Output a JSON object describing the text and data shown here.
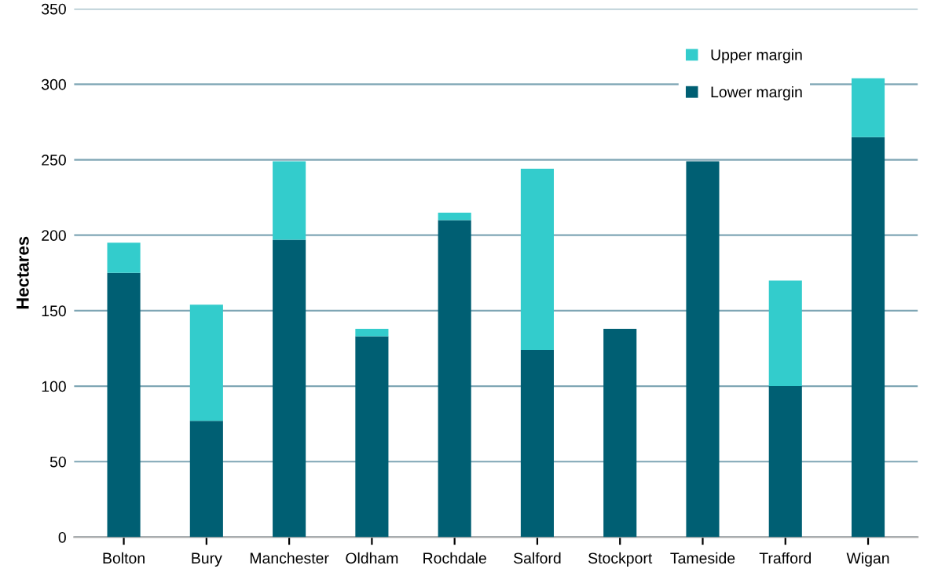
{
  "chart_data": {
    "type": "bar",
    "stacked": true,
    "ylabel": "Hectares",
    "categories": [
      "Bolton",
      "Bury",
      "Manchester",
      "Oldham",
      "Rochdale",
      "Salford",
      "Stockport",
      "Tameside",
      "Trafford",
      "Wigan"
    ],
    "series": [
      {
        "name": "Lower margin",
        "color": "#005f73",
        "values": [
          175,
          77,
          197,
          133,
          210,
          124,
          138,
          249,
          100,
          265
        ]
      },
      {
        "name": "Upper margin",
        "color": "#33cccc",
        "values": [
          20,
          77,
          52,
          5,
          5,
          120,
          0,
          0,
          70,
          39
        ]
      }
    ],
    "ylim": [
      0,
      350
    ],
    "yticks": [
      0,
      50,
      100,
      150,
      200,
      250,
      300,
      350
    ],
    "grid": "y",
    "legend": "top right"
  }
}
